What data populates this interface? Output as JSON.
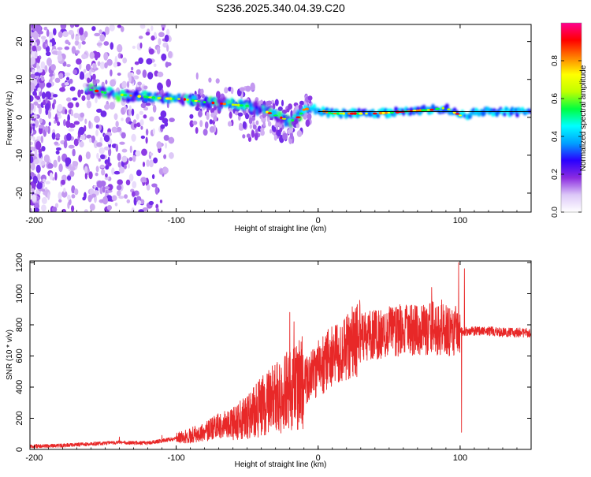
{
  "chart_data": [
    {
      "type": "heatmap",
      "title": "S236.2025.340.04.39.C20",
      "xlabel": "Height of straight line (km)",
      "ylabel": "Frequency (Hz)",
      "xlim": [
        -203,
        150
      ],
      "ylim": [
        -25,
        24.5
      ],
      "xticks": [
        -200,
        -100,
        0,
        100
      ],
      "yticks": [
        -20,
        -10,
        0,
        10,
        20
      ],
      "colorbar": {
        "label": "Normalized spectral amplitude",
        "range": [
          0,
          1
        ],
        "ticks": [
          0.0,
          0.2,
          0.4,
          0.6,
          0.8
        ],
        "tick_labels": [
          "0.0",
          "0.2",
          "0.4",
          "0.6",
          "0.8"
        ],
        "colormap": [
          "#ffffff",
          "#dcc8f8",
          "#8b2be0",
          "#2a00ff",
          "#00a0ff",
          "#00ffff",
          "#00ff40",
          "#c0ff00",
          "#ffff00",
          "#ff8000",
          "#ff0000",
          "#ff0090"
        ]
      },
      "ridge": {
        "x": [
          -163,
          -150,
          -140,
          -125,
          -110,
          -95,
          -80,
          -65,
          -50,
          -40,
          -30,
          -20,
          -15,
          -10,
          -5,
          0,
          10,
          20,
          40,
          60,
          80,
          90,
          95,
          100,
          110,
          120,
          130,
          150
        ],
        "y": [
          7.5,
          6.5,
          6.0,
          5.5,
          5.0,
          4.8,
          4.0,
          3.5,
          3.0,
          2.0,
          0.5,
          -1.0,
          -0.5,
          2.0,
          2.5,
          2.0,
          1.0,
          1.0,
          1.0,
          1.5,
          2.0,
          2.5,
          1.5,
          0.5,
          1.0,
          1.5,
          1.5,
          1.5
        ]
      }
    },
    {
      "type": "line",
      "title": "",
      "xlabel": "Height of straight line (km)",
      "ylabel": "SNR (10 * v/v)",
      "xlim": [
        -203,
        150
      ],
      "ylim": [
        0,
        1210
      ],
      "xticks": [
        -200,
        -100,
        0,
        100
      ],
      "yticks": [
        0,
        200,
        400,
        600,
        800,
        1000,
        1200
      ],
      "color": "#e82828",
      "trend": {
        "x": [
          -203,
          -180,
          -160,
          -140,
          -120,
          -110,
          -100,
          -90,
          -80,
          -70,
          -60,
          -50,
          -40,
          -30,
          -20,
          -10,
          0,
          10,
          20,
          30,
          40,
          50,
          60,
          70,
          80,
          90,
          95,
          100,
          105,
          110,
          120,
          130,
          140,
          150
        ],
        "y": [
          20,
          25,
          35,
          45,
          40,
          55,
          70,
          90,
          110,
          150,
          170,
          200,
          280,
          330,
          380,
          440,
          520,
          600,
          680,
          720,
          740,
          760,
          770,
          760,
          780,
          760,
          760,
          760,
          760,
          760,
          760,
          750,
          750,
          750
        ]
      },
      "peaks": [
        {
          "x": -140,
          "y": 80
        },
        {
          "x": -110,
          "y": 90
        },
        {
          "x": -20,
          "y": 880
        },
        {
          "x": -17,
          "y": 820
        },
        {
          "x": -12,
          "y": 690
        },
        {
          "x": 80,
          "y": 1040
        },
        {
          "x": 87,
          "y": 960
        },
        {
          "x": 99,
          "y": 1200
        },
        {
          "x": 101,
          "y": 110
        },
        {
          "x": 103,
          "y": 1160
        }
      ]
    }
  ]
}
